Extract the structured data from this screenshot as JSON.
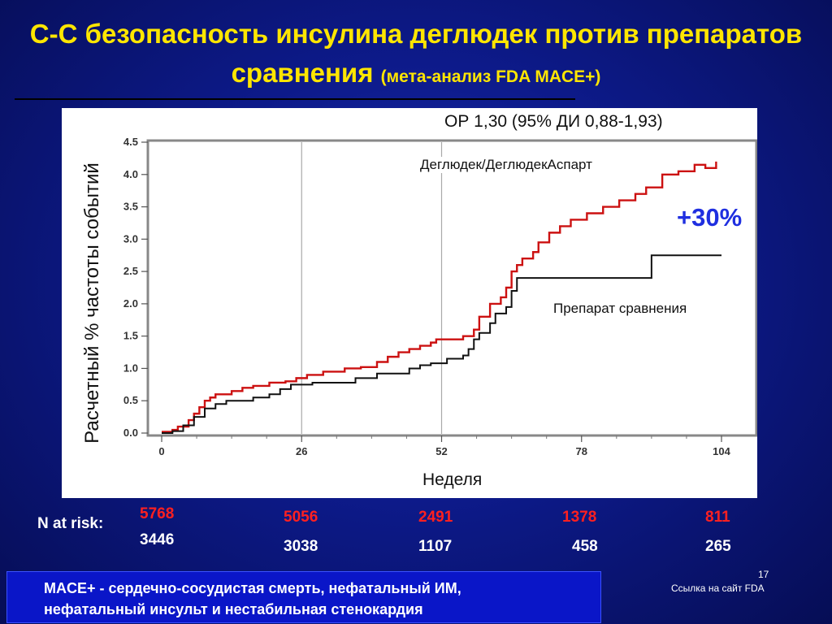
{
  "title": {
    "line1": "С-С безопасность инсулина деглюдек против препаратов",
    "line2_main": "сравнения",
    "line2_sub": "(мета-анализ FDA MACE+)"
  },
  "chart_data": {
    "type": "line",
    "title": "",
    "xlabel": "Неделя",
    "ylabel": "Расчетный  % частоты событий",
    "annotation_hr": "ОР 1,30 (95% ДИ 0,88-1,93)",
    "annotation_pct": "+30%",
    "xlim": [
      0,
      104
    ],
    "ylim": [
      0,
      4.5
    ],
    "x_ticks": [
      0,
      26,
      52,
      78,
      104
    ],
    "y_ticks": [
      "0.0",
      "0.5",
      "1.0",
      "1.5",
      "2.0",
      "2.5",
      "3.0",
      "3.5",
      "4.0",
      "4.5"
    ],
    "grid": "vertical lines at 26 and 52",
    "series": [
      {
        "name": "Деглюдек/ДеглюдекАспарт",
        "color": "#cc1111",
        "points": [
          [
            0,
            0.02
          ],
          [
            2,
            0.05
          ],
          [
            3,
            0.1
          ],
          [
            5,
            0.2
          ],
          [
            6,
            0.3
          ],
          [
            7,
            0.4
          ],
          [
            8,
            0.5
          ],
          [
            9,
            0.55
          ],
          [
            10,
            0.6
          ],
          [
            12,
            0.6
          ],
          [
            13,
            0.65
          ],
          [
            15,
            0.7
          ],
          [
            17,
            0.73
          ],
          [
            20,
            0.78
          ],
          [
            23,
            0.8
          ],
          [
            25,
            0.85
          ],
          [
            27,
            0.9
          ],
          [
            30,
            0.95
          ],
          [
            34,
            1.0
          ],
          [
            37,
            1.02
          ],
          [
            40,
            1.1
          ],
          [
            42,
            1.18
          ],
          [
            44,
            1.25
          ],
          [
            46,
            1.3
          ],
          [
            48,
            1.35
          ],
          [
            50,
            1.4
          ],
          [
            51,
            1.45
          ],
          [
            53,
            1.45
          ],
          [
            56,
            1.5
          ],
          [
            58,
            1.6
          ],
          [
            59,
            1.8
          ],
          [
            61,
            2.0
          ],
          [
            63,
            2.1
          ],
          [
            64,
            2.25
          ],
          [
            65,
            2.5
          ],
          [
            66,
            2.6
          ],
          [
            67,
            2.7
          ],
          [
            69,
            2.8
          ],
          [
            70,
            2.95
          ],
          [
            72,
            3.1
          ],
          [
            74,
            3.2
          ],
          [
            76,
            3.3
          ],
          [
            79,
            3.4
          ],
          [
            82,
            3.5
          ],
          [
            85,
            3.6
          ],
          [
            88,
            3.7
          ],
          [
            90,
            3.8
          ],
          [
            93,
            4.0
          ],
          [
            96,
            4.05
          ],
          [
            99,
            4.15
          ],
          [
            101,
            4.1
          ],
          [
            103,
            4.2
          ]
        ]
      },
      {
        "name": "Препарат  сравнения",
        "color": "#111111",
        "points": [
          [
            0,
            0.0
          ],
          [
            2,
            0.03
          ],
          [
            4,
            0.12
          ],
          [
            6,
            0.25
          ],
          [
            8,
            0.38
          ],
          [
            10,
            0.45
          ],
          [
            12,
            0.5
          ],
          [
            17,
            0.55
          ],
          [
            20,
            0.6
          ],
          [
            22,
            0.68
          ],
          [
            24,
            0.75
          ],
          [
            26,
            0.75
          ],
          [
            28,
            0.78
          ],
          [
            33,
            0.78
          ],
          [
            36,
            0.85
          ],
          [
            40,
            0.92
          ],
          [
            46,
            1.0
          ],
          [
            48,
            1.05
          ],
          [
            50,
            1.08
          ],
          [
            53,
            1.15
          ],
          [
            56,
            1.2
          ],
          [
            57,
            1.3
          ],
          [
            58,
            1.45
          ],
          [
            59,
            1.55
          ],
          [
            61,
            1.7
          ],
          [
            62,
            1.85
          ],
          [
            64,
            1.95
          ],
          [
            65,
            2.2
          ],
          [
            66,
            2.4
          ],
          [
            75,
            2.4
          ],
          [
            80,
            2.4
          ],
          [
            85,
            2.4
          ],
          [
            90,
            2.4
          ],
          [
            91,
            2.75
          ],
          [
            104,
            2.75
          ]
        ]
      }
    ]
  },
  "risk_table": {
    "label": "N at risk:",
    "weeks": [
      0,
      26,
      52,
      78,
      104
    ],
    "degludec": [
      "5768",
      "5056",
      "2491",
      "1378",
      "811"
    ],
    "comparator": [
      "3446",
      "3038",
      "1107",
      "458",
      "265"
    ]
  },
  "footnote": {
    "line1": "MACE+ - сердечно-сосудистая смерть, нефатальный ИМ,",
    "line2": "нефатальный инсульт и нестабильная стенокардия"
  },
  "page_number": "17",
  "reference": "Ссылка на сайт FDA"
}
